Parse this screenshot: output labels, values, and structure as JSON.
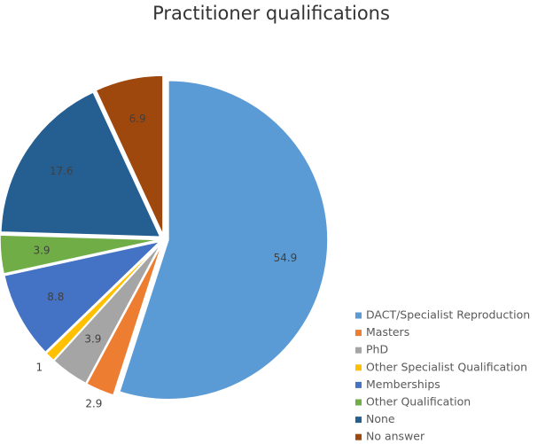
{
  "chart_data": {
    "type": "pie",
    "title": "Practitioner qualifications",
    "categories": [
      "DACT/Specialist Reproduction",
      "Masters",
      "PhD",
      "Other Specialist Qualification",
      "Memberships",
      "Other Qualification",
      "None",
      "No answer"
    ],
    "values": [
      54.9,
      2.9,
      3.9,
      1,
      8.8,
      3.9,
      17.6,
      6.9
    ],
    "colors": [
      "#5b9bd5",
      "#ed7d31",
      "#a5a5a5",
      "#ffc000",
      "#4472c4",
      "#70ad47",
      "#255e91",
      "#9e480e"
    ],
    "legend": "right"
  }
}
